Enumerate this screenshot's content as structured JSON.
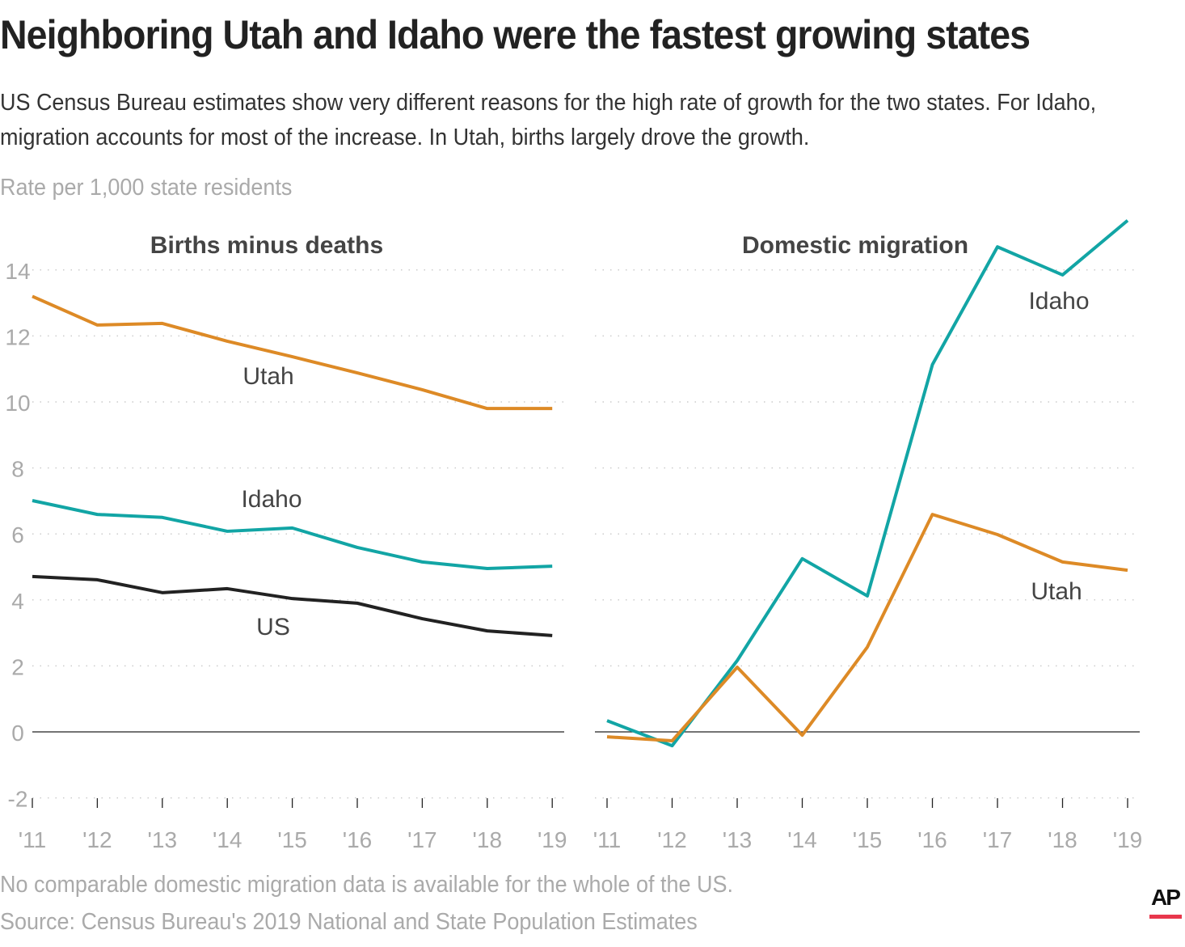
{
  "title": "Neighboring Utah and Idaho were the fastest growing states",
  "subtitle": "US Census Bureau estimates show very different reasons for the high rate of growth for the two states. For Idaho, migration accounts for most of the increase. In Utah, births largely drove the growth.",
  "unit_label": "Rate per 1,000 state residents",
  "footnote": "No comparable domestic migration data is available for the whole of the US.",
  "source": "Source: Census Bureau's 2019 National and State Population Estimates",
  "logo": "AP",
  "colors": {
    "utah": "#dd8a26",
    "idaho": "#12a5a5",
    "us": "#222222",
    "brand": "#e8374c"
  },
  "chart_data": [
    {
      "type": "line",
      "title": "Births minus deaths",
      "categories": [
        "'11",
        "'12",
        "'13",
        "'14",
        "'15",
        "'16",
        "'17",
        "'18",
        "'19"
      ],
      "ylim": [
        -2,
        14
      ],
      "yticks": [
        "-2",
        "0",
        "2",
        "4",
        "6",
        "8",
        "10",
        "12",
        "14"
      ],
      "grid": true,
      "series": [
        {
          "name": "Utah",
          "color": "#dd8a26",
          "values": [
            13.2,
            12.33,
            12.38,
            11.84,
            11.37,
            10.88,
            10.37,
            9.8,
            9.8
          ]
        },
        {
          "name": "Idaho",
          "color": "#12a5a5",
          "values": [
            7.01,
            6.59,
            6.5,
            6.08,
            6.18,
            5.59,
            5.15,
            4.95,
            5.02
          ]
        },
        {
          "name": "US",
          "color": "#222222",
          "values": [
            4.71,
            4.61,
            4.22,
            4.34,
            4.04,
            3.9,
            3.43,
            3.06,
            2.92
          ]
        }
      ]
    },
    {
      "type": "line",
      "title": "Domestic migration",
      "categories": [
        "'11",
        "'12",
        "'13",
        "'14",
        "'15",
        "'16",
        "'17",
        "'18",
        "'19"
      ],
      "ylim": [
        -2,
        14
      ],
      "grid": true,
      "series": [
        {
          "name": "Idaho",
          "color": "#12a5a5",
          "values": [
            0.34,
            -0.42,
            2.16,
            5.25,
            4.12,
            11.13,
            14.7,
            13.85,
            15.5
          ]
        },
        {
          "name": "Utah",
          "color": "#dd8a26",
          "values": [
            -0.15,
            -0.27,
            1.96,
            -0.1,
            2.57,
            6.59,
            5.98,
            5.15,
            4.9
          ]
        }
      ]
    }
  ]
}
